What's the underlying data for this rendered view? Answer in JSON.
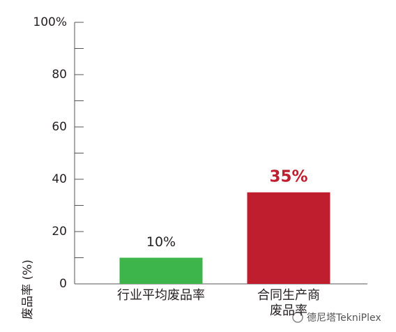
{
  "chart_data": {
    "type": "bar",
    "y_label": "废品率 (%)",
    "categories": [
      "行业平均废品率",
      "合同生产商废品率"
    ],
    "values": [
      10,
      35
    ],
    "value_labels": [
      "10%",
      "35%"
    ],
    "colors": [
      "#3db54a",
      "#bf1e2e"
    ],
    "value_label_colors": [
      "#231f20",
      "#bf1e2e"
    ],
    "ylim": [
      0,
      100
    ],
    "yticks": [
      0,
      20,
      40,
      60,
      80,
      {
        "value": 100,
        "label": "100%"
      }
    ],
    "minor_yticks": [
      10,
      30,
      50,
      70,
      90
    ]
  },
  "watermark": "德尼塔TekniPlex"
}
